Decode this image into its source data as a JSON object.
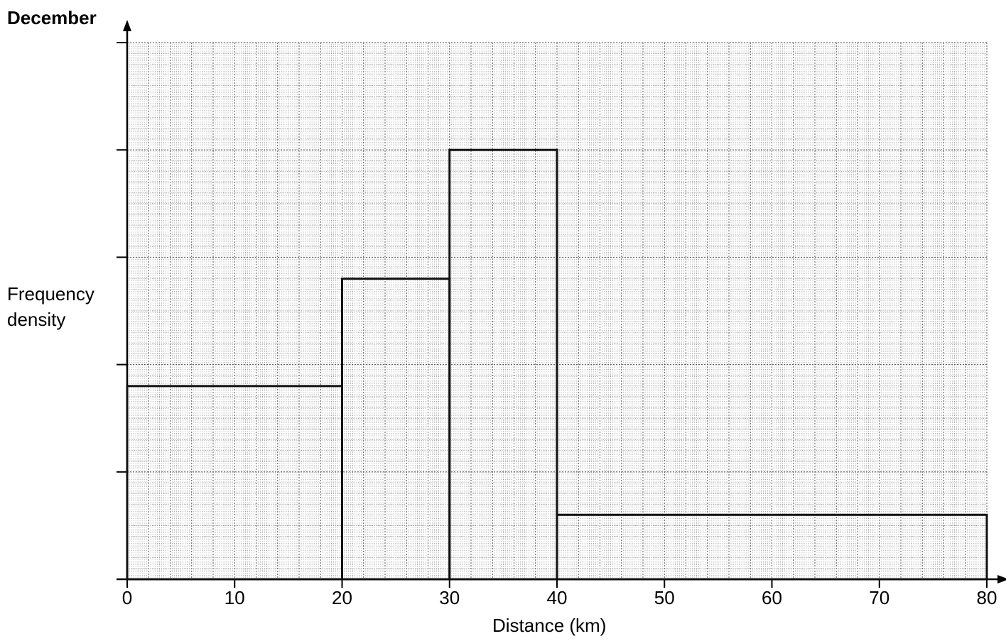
{
  "chart_data": {
    "type": "histogram",
    "title": "December",
    "ylabel_lines": [
      "Frequency",
      "density"
    ],
    "xlabel": "Distance (km)",
    "x_ticks": [
      "0",
      "10",
      "20",
      "30",
      "40",
      "50",
      "60",
      "70",
      "80"
    ],
    "xlim": [
      0,
      80
    ],
    "ylim": [
      0,
      5
    ],
    "y_tick_count": 5,
    "grid": true,
    "bars": [
      {
        "x_start": 0,
        "x_end": 20,
        "height": 1.8
      },
      {
        "x_start": 20,
        "x_end": 30,
        "height": 2.8
      },
      {
        "x_start": 30,
        "x_end": 40,
        "height": 4.0
      },
      {
        "x_start": 40,
        "x_end": 80,
        "height": 0.6
      }
    ]
  }
}
